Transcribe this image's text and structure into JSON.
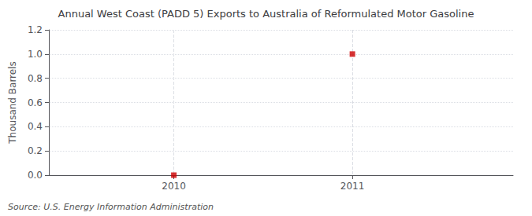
{
  "chart_data": {
    "type": "scatter",
    "title": "Annual West Coast (PADD 5) Exports to Australia of Reformulated Motor Gasoline",
    "ylabel": "Thousand Barrels",
    "annotations": [
      "Source: U.S. Energy Information Administration"
    ],
    "x": [
      2010,
      2011
    ],
    "values": [
      0.0,
      1.0
    ],
    "color": "#cc0000",
    "marker": "square",
    "xlim": [
      2009.3,
      2011.9
    ],
    "xticks": [
      2010,
      2011
    ],
    "ylim": [
      0.0,
      1.2
    ],
    "yticks": [
      {
        "value": 0.0,
        "label": "0.0"
      },
      0.2,
      0.4,
      0.6,
      0.8,
      {
        "value": 1.0,
        "label": "1.0"
      },
      1.2
    ],
    "grid": true
  }
}
